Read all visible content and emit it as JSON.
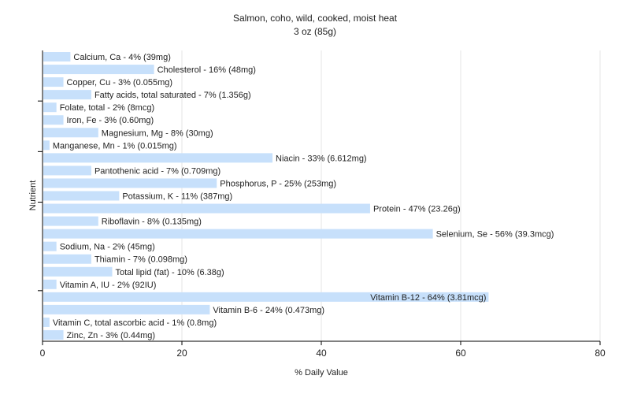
{
  "chart_data": {
    "type": "bar",
    "orientation": "horizontal",
    "title": "Salmon, coho, wild, cooked, moist heat",
    "subtitle": "3 oz (85g)",
    "xlabel": "% Daily Value",
    "ylabel": "Nutrient",
    "xlim": [
      0,
      80
    ],
    "xticks": [
      0,
      20,
      40,
      60,
      80
    ],
    "grid": "vertical",
    "bar_color": "#c7e0fb",
    "gridline_color": "#e6e6e6",
    "categories": [
      "Calcium, Ca",
      "Cholesterol",
      "Copper, Cu",
      "Fatty acids, total saturated",
      "Folate, total",
      "Iron, Fe",
      "Magnesium, Mg",
      "Manganese, Mn",
      "Niacin",
      "Pantothenic acid",
      "Phosphorus, P",
      "Potassium, K",
      "Protein",
      "Riboflavin",
      "Selenium, Se",
      "Sodium, Na",
      "Thiamin",
      "Total lipid (fat)",
      "Vitamin A, IU",
      "Vitamin B-12",
      "Vitamin B-6",
      "Vitamin C, total ascorbic acid",
      "Zinc, Zn"
    ],
    "values": [
      4,
      16,
      3,
      7,
      2,
      3,
      8,
      1,
      33,
      7,
      25,
      11,
      47,
      8,
      56,
      2,
      7,
      10,
      2,
      64,
      24,
      1,
      3
    ],
    "labels": [
      "Calcium, Ca - 4% (39mg)",
      "Cholesterol - 16% (48mg)",
      "Copper, Cu - 3% (0.055mg)",
      "Fatty acids, total saturated - 7% (1.356g)",
      "Folate, total - 2% (8mcg)",
      "Iron, Fe - 3% (0.60mg)",
      "Magnesium, Mg - 8% (30mg)",
      "Manganese, Mn - 1% (0.015mg)",
      "Niacin - 33% (6.612mg)",
      "Pantothenic acid - 7% (0.709mg)",
      "Phosphorus, P - 25% (253mg)",
      "Potassium, K - 11% (387mg)",
      "Protein - 47% (23.26g)",
      "Riboflavin - 8% (0.135mg)",
      "Selenium, Se - 56% (39.3mcg)",
      "Sodium, Na - 2% (45mg)",
      "Thiamin - 7% (0.098mg)",
      "Total lipid (fat) - 10% (6.38g)",
      "Vitamin A, IU - 2% (92IU)",
      "Vitamin B-12 - 64% (3.81mcg)",
      "Vitamin B-6 - 24% (0.473mg)",
      "Vitamin C, total ascorbic acid - 1% (0.8mg)",
      "Zinc, Zn - 3% (0.44mg)"
    ]
  }
}
